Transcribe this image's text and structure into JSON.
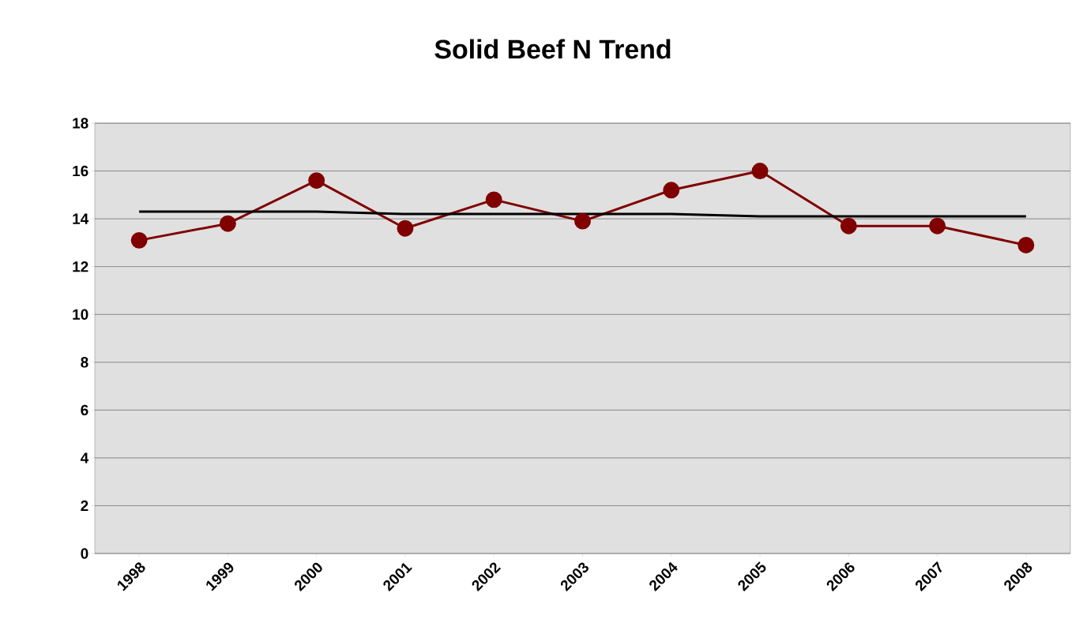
{
  "chart_data": {
    "type": "line",
    "title": "Solid Beef N Trend",
    "categories": [
      "1998",
      "1999",
      "2000",
      "2001",
      "2002",
      "2003",
      "2004",
      "2005",
      "2006",
      "2007",
      "2008"
    ],
    "series": [
      {
        "color": "#800000",
        "marker": "circle",
        "values": [
          13.1,
          13.8,
          15.6,
          13.6,
          14.8,
          13.9,
          15.2,
          16.0,
          13.7,
          13.7,
          12.9
        ]
      },
      {
        "color": "#000000",
        "marker": "none",
        "values": [
          14.3,
          14.3,
          14.3,
          14.2,
          14.2,
          14.2,
          14.2,
          14.1,
          14.1,
          14.1,
          14.1
        ]
      }
    ],
    "ylim": [
      0,
      18
    ],
    "yticks": [
      0,
      2,
      4,
      6,
      8,
      10,
      12,
      14,
      16,
      18
    ],
    "grid": "y"
  }
}
